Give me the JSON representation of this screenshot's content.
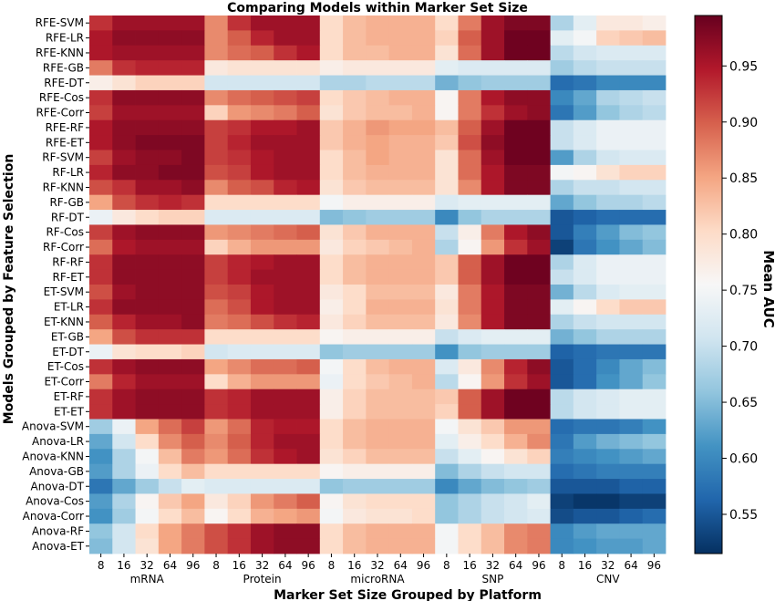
{
  "chart_data": {
    "type": "heatmap",
    "title": "Comparing Models within Marker Set Size",
    "xlabel": "Marker Set Size Grouped by Platform",
    "ylabel": "Models Grouped by Feature Selection",
    "colorbar_label": "Mean AUC",
    "colorbar_ticks": [
      "0.55",
      "0.60",
      "0.65",
      "0.70",
      "0.75",
      "0.80",
      "0.85",
      "0.90",
      "0.95"
    ],
    "value_range": [
      0.515,
      0.995
    ],
    "colormap": "RdBu_r",
    "platforms": [
      "mRNA",
      "Protein",
      "microRNA",
      "SNP",
      "CNV"
    ],
    "sizes": [
      "8",
      "16",
      "32",
      "64",
      "96"
    ],
    "rows": [
      "RFE-SVM",
      "RFE-LR",
      "RFE-KNN",
      "RFE-GB",
      "RFE-DT",
      "RFE-Cos",
      "RFE-Corr",
      "RFE-RF",
      "RFE-ET",
      "RF-SVM",
      "RF-LR",
      "RF-KNN",
      "RF-GB",
      "RF-DT",
      "RF-Cos",
      "RF-Corr",
      "RF-RF",
      "RF-ET",
      "ET-SVM",
      "ET-LR",
      "ET-KNN",
      "ET-GB",
      "ET-DT",
      "ET-Cos",
      "ET-Corr",
      "ET-RF",
      "ET-ET",
      "Anova-SVM",
      "Anova-LR",
      "Anova-KNN",
      "Anova-GB",
      "Anova-DT",
      "Anova-Cos",
      "Anova-Corr",
      "Anova-RF",
      "Anova-ET"
    ],
    "values": [
      [
        0.93,
        0.96,
        0.96,
        0.96,
        0.96,
        0.87,
        0.93,
        0.96,
        0.96,
        0.96,
        0.8,
        0.83,
        0.84,
        0.84,
        0.84,
        0.8,
        0.88,
        0.96,
        0.98,
        0.98,
        0.68,
        0.73,
        0.78,
        0.78,
        0.77
      ],
      [
        0.95,
        0.97,
        0.97,
        0.97,
        0.97,
        0.87,
        0.9,
        0.94,
        0.96,
        0.96,
        0.8,
        0.83,
        0.84,
        0.84,
        0.84,
        0.81,
        0.9,
        0.96,
        0.99,
        0.99,
        0.73,
        0.75,
        0.81,
        0.82,
        0.83
      ],
      [
        0.95,
        0.96,
        0.96,
        0.96,
        0.96,
        0.87,
        0.89,
        0.9,
        0.93,
        0.95,
        0.8,
        0.83,
        0.83,
        0.84,
        0.84,
        0.79,
        0.89,
        0.96,
        0.99,
        0.99,
        0.69,
        0.71,
        0.72,
        0.72,
        0.72
      ],
      [
        0.88,
        0.93,
        0.94,
        0.94,
        0.94,
        0.78,
        0.79,
        0.79,
        0.79,
        0.79,
        0.77,
        0.78,
        0.78,
        0.78,
        0.78,
        0.73,
        0.72,
        0.72,
        0.72,
        0.72,
        0.67,
        0.69,
        0.7,
        0.7,
        0.7
      ],
      [
        0.77,
        0.79,
        0.81,
        0.81,
        0.81,
        0.71,
        0.71,
        0.71,
        0.71,
        0.71,
        0.68,
        0.68,
        0.69,
        0.69,
        0.69,
        0.64,
        0.66,
        0.67,
        0.67,
        0.67,
        0.57,
        0.58,
        0.6,
        0.6,
        0.6
      ],
      [
        0.93,
        0.97,
        0.97,
        0.97,
        0.97,
        0.87,
        0.89,
        0.9,
        0.91,
        0.92,
        0.8,
        0.82,
        0.83,
        0.84,
        0.84,
        0.76,
        0.88,
        0.95,
        0.97,
        0.97,
        0.6,
        0.63,
        0.68,
        0.69,
        0.7
      ],
      [
        0.92,
        0.96,
        0.96,
        0.96,
        0.96,
        0.81,
        0.86,
        0.87,
        0.88,
        0.9,
        0.79,
        0.82,
        0.83,
        0.83,
        0.84,
        0.76,
        0.88,
        0.93,
        0.96,
        0.97,
        0.58,
        0.62,
        0.66,
        0.68,
        0.69
      ],
      [
        0.95,
        0.97,
        0.97,
        0.97,
        0.97,
        0.92,
        0.93,
        0.95,
        0.95,
        0.96,
        0.82,
        0.84,
        0.86,
        0.85,
        0.85,
        0.83,
        0.9,
        0.96,
        0.99,
        0.99,
        0.7,
        0.72,
        0.74,
        0.74,
        0.74
      ],
      [
        0.95,
        0.97,
        0.98,
        0.98,
        0.98,
        0.92,
        0.94,
        0.96,
        0.96,
        0.96,
        0.82,
        0.84,
        0.85,
        0.84,
        0.84,
        0.82,
        0.91,
        0.97,
        0.99,
        0.99,
        0.7,
        0.72,
        0.74,
        0.74,
        0.74
      ],
      [
        0.92,
        0.96,
        0.97,
        0.97,
        0.98,
        0.92,
        0.93,
        0.95,
        0.96,
        0.96,
        0.8,
        0.83,
        0.85,
        0.84,
        0.84,
        0.79,
        0.89,
        0.96,
        0.99,
        0.99,
        0.62,
        0.68,
        0.71,
        0.72,
        0.72
      ],
      [
        0.94,
        0.97,
        0.97,
        0.98,
        0.98,
        0.91,
        0.92,
        0.95,
        0.96,
        0.96,
        0.8,
        0.83,
        0.84,
        0.84,
        0.84,
        0.79,
        0.89,
        0.95,
        0.98,
        0.98,
        0.75,
        0.76,
        0.79,
        0.81,
        0.81
      ],
      [
        0.91,
        0.93,
        0.96,
        0.96,
        0.97,
        0.87,
        0.9,
        0.91,
        0.94,
        0.95,
        0.79,
        0.82,
        0.83,
        0.83,
        0.83,
        0.79,
        0.87,
        0.95,
        0.98,
        0.98,
        0.68,
        0.7,
        0.7,
        0.71,
        0.71
      ],
      [
        0.85,
        0.91,
        0.93,
        0.94,
        0.93,
        0.8,
        0.8,
        0.8,
        0.8,
        0.8,
        0.75,
        0.77,
        0.77,
        0.77,
        0.77,
        0.72,
        0.73,
        0.73,
        0.73,
        0.73,
        0.63,
        0.66,
        0.68,
        0.68,
        0.69
      ],
      [
        0.74,
        0.78,
        0.8,
        0.81,
        0.81,
        0.72,
        0.72,
        0.72,
        0.72,
        0.72,
        0.65,
        0.66,
        0.67,
        0.67,
        0.67,
        0.6,
        0.66,
        0.68,
        0.68,
        0.68,
        0.55,
        0.56,
        0.57,
        0.57,
        0.57
      ],
      [
        0.92,
        0.96,
        0.97,
        0.97,
        0.97,
        0.86,
        0.87,
        0.88,
        0.89,
        0.9,
        0.79,
        0.82,
        0.84,
        0.84,
        0.84,
        0.7,
        0.77,
        0.88,
        0.95,
        0.97,
        0.55,
        0.59,
        0.62,
        0.65,
        0.66
      ],
      [
        0.89,
        0.95,
        0.96,
        0.96,
        0.96,
        0.81,
        0.84,
        0.86,
        0.86,
        0.86,
        0.78,
        0.81,
        0.82,
        0.83,
        0.84,
        0.68,
        0.76,
        0.86,
        0.93,
        0.96,
        0.53,
        0.58,
        0.61,
        0.63,
        0.65
      ],
      [
        0.93,
        0.97,
        0.97,
        0.97,
        0.97,
        0.92,
        0.94,
        0.95,
        0.96,
        0.96,
        0.8,
        0.83,
        0.84,
        0.84,
        0.84,
        0.82,
        0.9,
        0.96,
        0.99,
        0.99,
        0.68,
        0.72,
        0.74,
        0.74,
        0.74
      ],
      [
        0.93,
        0.97,
        0.97,
        0.97,
        0.97,
        0.92,
        0.94,
        0.96,
        0.96,
        0.96,
        0.8,
        0.83,
        0.84,
        0.84,
        0.84,
        0.82,
        0.9,
        0.96,
        0.99,
        0.99,
        0.7,
        0.72,
        0.74,
        0.74,
        0.74
      ],
      [
        0.91,
        0.96,
        0.97,
        0.97,
        0.97,
        0.91,
        0.92,
        0.95,
        0.96,
        0.96,
        0.78,
        0.8,
        0.83,
        0.83,
        0.83,
        0.78,
        0.88,
        0.95,
        0.98,
        0.98,
        0.64,
        0.69,
        0.72,
        0.73,
        0.73
      ],
      [
        0.93,
        0.97,
        0.97,
        0.97,
        0.97,
        0.89,
        0.91,
        0.95,
        0.96,
        0.96,
        0.77,
        0.8,
        0.84,
        0.84,
        0.84,
        0.79,
        0.88,
        0.95,
        0.98,
        0.98,
        0.73,
        0.76,
        0.8,
        0.82,
        0.82
      ],
      [
        0.9,
        0.94,
        0.96,
        0.96,
        0.97,
        0.88,
        0.89,
        0.91,
        0.93,
        0.94,
        0.78,
        0.81,
        0.83,
        0.83,
        0.83,
        0.78,
        0.87,
        0.95,
        0.98,
        0.98,
        0.68,
        0.7,
        0.71,
        0.71,
        0.71
      ],
      [
        0.85,
        0.91,
        0.93,
        0.93,
        0.93,
        0.8,
        0.8,
        0.8,
        0.8,
        0.8,
        0.76,
        0.77,
        0.77,
        0.77,
        0.77,
        0.7,
        0.72,
        0.73,
        0.73,
        0.73,
        0.64,
        0.66,
        0.68,
        0.68,
        0.68
      ],
      [
        0.74,
        0.79,
        0.8,
        0.8,
        0.81,
        0.71,
        0.72,
        0.72,
        0.72,
        0.72,
        0.66,
        0.67,
        0.67,
        0.67,
        0.67,
        0.61,
        0.66,
        0.67,
        0.67,
        0.67,
        0.56,
        0.57,
        0.58,
        0.58,
        0.58
      ],
      [
        0.93,
        0.96,
        0.97,
        0.97,
        0.97,
        0.85,
        0.87,
        0.89,
        0.89,
        0.9,
        0.75,
        0.8,
        0.83,
        0.84,
        0.84,
        0.72,
        0.78,
        0.87,
        0.94,
        0.97,
        0.55,
        0.57,
        0.6,
        0.63,
        0.65
      ],
      [
        0.88,
        0.94,
        0.96,
        0.96,
        0.96,
        0.8,
        0.84,
        0.86,
        0.86,
        0.86,
        0.74,
        0.8,
        0.82,
        0.83,
        0.84,
        0.69,
        0.76,
        0.86,
        0.93,
        0.96,
        0.55,
        0.57,
        0.61,
        0.63,
        0.66
      ],
      [
        0.93,
        0.96,
        0.97,
        0.97,
        0.97,
        0.93,
        0.94,
        0.96,
        0.96,
        0.96,
        0.77,
        0.81,
        0.83,
        0.83,
        0.83,
        0.82,
        0.9,
        0.96,
        0.99,
        0.99,
        0.69,
        0.71,
        0.72,
        0.73,
        0.73
      ],
      [
        0.93,
        0.96,
        0.97,
        0.97,
        0.97,
        0.93,
        0.94,
        0.96,
        0.96,
        0.96,
        0.77,
        0.81,
        0.83,
        0.83,
        0.83,
        0.81,
        0.9,
        0.96,
        0.99,
        0.99,
        0.69,
        0.71,
        0.72,
        0.73,
        0.73
      ],
      [
        0.67,
        0.74,
        0.85,
        0.89,
        0.92,
        0.86,
        0.89,
        0.94,
        0.95,
        0.95,
        0.8,
        0.83,
        0.84,
        0.84,
        0.84,
        0.75,
        0.79,
        0.82,
        0.86,
        0.86,
        0.57,
        0.58,
        0.58,
        0.59,
        0.61
      ],
      [
        0.63,
        0.71,
        0.8,
        0.87,
        0.9,
        0.87,
        0.9,
        0.94,
        0.96,
        0.96,
        0.8,
        0.83,
        0.84,
        0.84,
        0.84,
        0.73,
        0.77,
        0.8,
        0.84,
        0.87,
        0.58,
        0.62,
        0.64,
        0.65,
        0.66
      ],
      [
        0.61,
        0.68,
        0.75,
        0.83,
        0.88,
        0.86,
        0.89,
        0.93,
        0.95,
        0.96,
        0.79,
        0.81,
        0.83,
        0.83,
        0.83,
        0.7,
        0.73,
        0.76,
        0.79,
        0.81,
        0.59,
        0.6,
        0.61,
        0.62,
        0.63
      ],
      [
        0.62,
        0.68,
        0.74,
        0.8,
        0.83,
        0.8,
        0.8,
        0.8,
        0.8,
        0.8,
        0.76,
        0.77,
        0.77,
        0.77,
        0.77,
        0.65,
        0.68,
        0.7,
        0.71,
        0.71,
        0.57,
        0.58,
        0.59,
        0.59,
        0.59
      ],
      [
        0.58,
        0.63,
        0.67,
        0.7,
        0.73,
        0.72,
        0.72,
        0.72,
        0.72,
        0.72,
        0.66,
        0.67,
        0.67,
        0.67,
        0.67,
        0.6,
        0.63,
        0.65,
        0.66,
        0.67,
        0.55,
        0.55,
        0.55,
        0.56,
        0.56
      ],
      [
        0.62,
        0.68,
        0.76,
        0.82,
        0.85,
        0.78,
        0.81,
        0.86,
        0.88,
        0.9,
        0.76,
        0.79,
        0.8,
        0.8,
        0.8,
        0.66,
        0.68,
        0.7,
        0.71,
        0.73,
        0.53,
        0.52,
        0.52,
        0.53,
        0.53
      ],
      [
        0.61,
        0.67,
        0.75,
        0.8,
        0.83,
        0.76,
        0.8,
        0.84,
        0.85,
        0.86,
        0.75,
        0.78,
        0.79,
        0.79,
        0.8,
        0.66,
        0.68,
        0.7,
        0.71,
        0.72,
        0.54,
        0.55,
        0.55,
        0.56,
        0.57
      ],
      [
        0.66,
        0.71,
        0.8,
        0.85,
        0.88,
        0.91,
        0.93,
        0.96,
        0.97,
        0.97,
        0.8,
        0.83,
        0.84,
        0.84,
        0.84,
        0.75,
        0.8,
        0.83,
        0.87,
        0.88,
        0.6,
        0.62,
        0.63,
        0.63,
        0.63
      ],
      [
        0.65,
        0.71,
        0.79,
        0.85,
        0.88,
        0.91,
        0.93,
        0.96,
        0.97,
        0.97,
        0.8,
        0.83,
        0.84,
        0.84,
        0.84,
        0.75,
        0.8,
        0.83,
        0.87,
        0.88,
        0.6,
        0.61,
        0.62,
        0.62,
        0.63
      ]
    ]
  }
}
